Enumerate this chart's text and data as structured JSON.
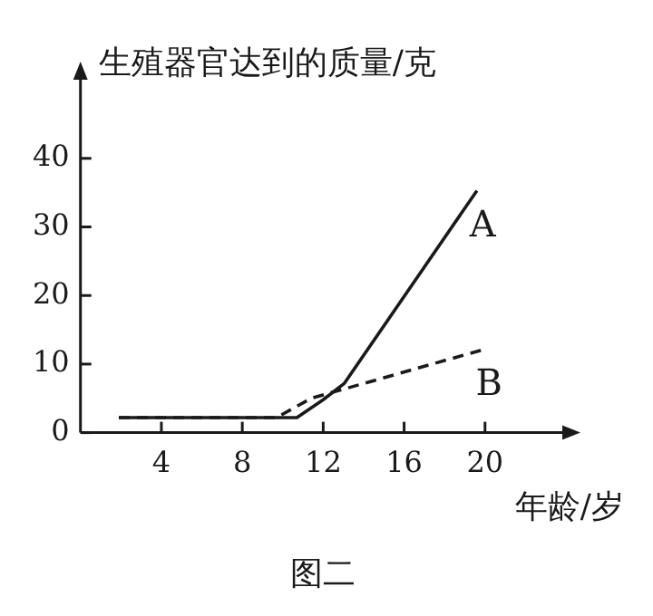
{
  "chart_data": {
    "type": "line",
    "ylabel": "生殖器官达到的质量/克",
    "xlabel": "年龄/岁",
    "annotations": [
      "图二"
    ],
    "xlim": [
      0,
      24
    ],
    "ylim": [
      0,
      52
    ],
    "xticks": [
      4,
      8,
      12,
      16,
      20
    ],
    "yticks": [
      0,
      10,
      20,
      30,
      40
    ],
    "grid": false,
    "legend": false,
    "marker": "none",
    "series": [
      {
        "name": "A",
        "color": "#1a1a1a",
        "line_style": "solid",
        "x": [
          1.9,
          10.7,
          12,
          13.05,
          19.6
        ],
        "values": [
          2.2,
          2.2,
          4.8,
          7.2,
          35.3
        ]
      },
      {
        "name": "B",
        "color": "#1a1a1a",
        "line_style": "dashed",
        "x": [
          1.9,
          9.7,
          11.4,
          19.9
        ],
        "values": [
          2.2,
          2.2,
          5,
          12.1
        ]
      }
    ]
  }
}
